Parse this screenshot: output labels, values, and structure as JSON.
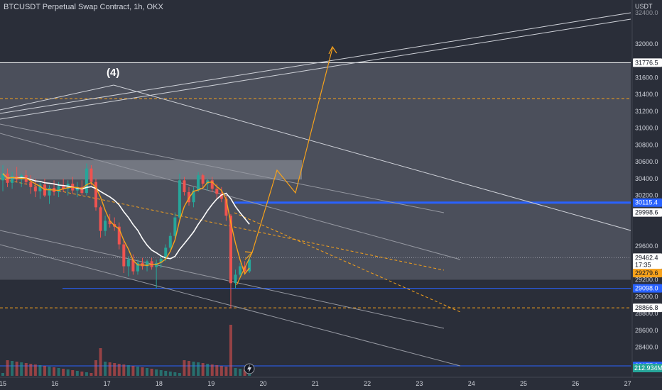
{
  "title": "BTCUSDT Perpetual Swap Contract, 1h, OKX",
  "currency": "USDT",
  "wave_label": "(4)",
  "colors": {
    "background": "#2a2e39",
    "zone": "#4b4f5b",
    "zone_light": "#7d818b",
    "bull": "#26a69a",
    "bear": "#ef5350",
    "ma_white": "#ffffff",
    "ma_orange": "#f7a21b",
    "blue_line": "#2962ff",
    "orange_dash": "#f7a21b"
  },
  "chart_data": {
    "type": "candlestick",
    "symbol": "BTCUSDT",
    "exchange": "OKX",
    "timeframe": "1h",
    "x_ticks": [
      "15",
      "16",
      "17",
      "18",
      "19",
      "20",
      "21",
      "22",
      "23",
      "24",
      "25",
      "26",
      "27"
    ],
    "y_ticks": [
      32000.0,
      31600.0,
      31400.0,
      31200.0,
      31000.0,
      30800.0,
      30600.0,
      30400.0,
      30200.0,
      29600.0,
      29200.0,
      29000.0,
      28800.0,
      28600.0,
      28400.0,
      28200.0
    ],
    "y_top_cut_label": "32400.0",
    "ylim": [
      28060,
      32520
    ],
    "price_tags": [
      {
        "value": 31776.5,
        "text": "31776.5",
        "style": "white"
      },
      {
        "value": 30115.4,
        "text": "30115.4",
        "style": "blue"
      },
      {
        "value": 29998.6,
        "text": "29998.6",
        "style": "white"
      },
      {
        "value": 29462.4,
        "text": "29462.4",
        "sub": "17:35",
        "style": "white"
      },
      {
        "value": 29279.6,
        "text": "29279.6",
        "style": "orange"
      },
      {
        "value": 29098.0,
        "text": "29098.0",
        "style": "blue"
      },
      {
        "value": 28866.8,
        "text": "28866.8",
        "style": "white"
      },
      {
        "value": 28177.3,
        "text": "28177.3",
        "style": "blue"
      }
    ],
    "volume_tag": "212.934M",
    "levels": [
      {
        "price": 31776.5,
        "style": "white-solid"
      },
      {
        "price": 31350.0,
        "style": "orange-dashed"
      },
      {
        "price": 29462.4,
        "style": "gray-dotted"
      },
      {
        "price": 28866.8,
        "style": "orange-dashed"
      }
    ],
    "zones": [
      {
        "from": 29200,
        "to": 31776.5
      },
      {
        "from": 30390,
        "to": 30620
      }
    ],
    "candles": [
      {
        "t": 0,
        "o": 30380,
        "h": 30560,
        "l": 30250,
        "c": 30460
      },
      {
        "t": 1,
        "o": 30460,
        "h": 30520,
        "l": 30300,
        "c": 30350
      },
      {
        "t": 2,
        "o": 30350,
        "h": 30480,
        "l": 30280,
        "c": 30430
      },
      {
        "t": 3,
        "o": 30430,
        "h": 30540,
        "l": 30360,
        "c": 30390
      },
      {
        "t": 4,
        "o": 30390,
        "h": 30460,
        "l": 30300,
        "c": 30440
      },
      {
        "t": 5,
        "o": 30440,
        "h": 30500,
        "l": 30330,
        "c": 30360
      },
      {
        "t": 6,
        "o": 30360,
        "h": 30440,
        "l": 30220,
        "c": 30300
      },
      {
        "t": 7,
        "o": 30300,
        "h": 30400,
        "l": 30180,
        "c": 30250
      },
      {
        "t": 8,
        "o": 30250,
        "h": 30360,
        "l": 30160,
        "c": 30330
      },
      {
        "t": 9,
        "o": 30330,
        "h": 30400,
        "l": 30180,
        "c": 30200
      },
      {
        "t": 10,
        "o": 30200,
        "h": 30320,
        "l": 30100,
        "c": 30290
      },
      {
        "t": 11,
        "o": 30290,
        "h": 30380,
        "l": 30200,
        "c": 30240
      },
      {
        "t": 12,
        "o": 30240,
        "h": 30360,
        "l": 30180,
        "c": 30310
      },
      {
        "t": 13,
        "o": 30310,
        "h": 30400,
        "l": 30240,
        "c": 30280
      },
      {
        "t": 14,
        "o": 30280,
        "h": 30380,
        "l": 30200,
        "c": 30340
      },
      {
        "t": 15,
        "o": 30340,
        "h": 30420,
        "l": 30220,
        "c": 30260
      },
      {
        "t": 16,
        "o": 30260,
        "h": 30360,
        "l": 30180,
        "c": 30300
      },
      {
        "t": 17,
        "o": 30300,
        "h": 30380,
        "l": 30200,
        "c": 30230
      },
      {
        "t": 18,
        "o": 30230,
        "h": 30580,
        "l": 30200,
        "c": 30520
      },
      {
        "t": 19,
        "o": 30520,
        "h": 30560,
        "l": 30320,
        "c": 30360
      },
      {
        "t": 20,
        "o": 30360,
        "h": 30400,
        "l": 30020,
        "c": 30060
      },
      {
        "t": 21,
        "o": 30060,
        "h": 30080,
        "l": 29700,
        "c": 29780
      },
      {
        "t": 22,
        "o": 29780,
        "h": 29960,
        "l": 29720,
        "c": 29900
      },
      {
        "t": 23,
        "o": 29900,
        "h": 29980,
        "l": 29820,
        "c": 29860
      },
      {
        "t": 24,
        "o": 29860,
        "h": 29940,
        "l": 29780,
        "c": 29830
      },
      {
        "t": 25,
        "o": 29830,
        "h": 29880,
        "l": 29560,
        "c": 29620
      },
      {
        "t": 26,
        "o": 29620,
        "h": 29680,
        "l": 29280,
        "c": 29360
      },
      {
        "t": 27,
        "o": 29360,
        "h": 29480,
        "l": 29240,
        "c": 29440
      },
      {
        "t": 28,
        "o": 29440,
        "h": 29500,
        "l": 29260,
        "c": 29300
      },
      {
        "t": 29,
        "o": 29300,
        "h": 29440,
        "l": 29260,
        "c": 29400
      },
      {
        "t": 30,
        "o": 29400,
        "h": 29460,
        "l": 29320,
        "c": 29360
      },
      {
        "t": 31,
        "o": 29360,
        "h": 29440,
        "l": 29300,
        "c": 29420
      },
      {
        "t": 32,
        "o": 29420,
        "h": 29460,
        "l": 29320,
        "c": 29350
      },
      {
        "t": 33,
        "o": 29350,
        "h": 29440,
        "l": 29100,
        "c": 29400
      },
      {
        "t": 34,
        "o": 29400,
        "h": 29480,
        "l": 29340,
        "c": 29450
      },
      {
        "t": 35,
        "o": 29450,
        "h": 29620,
        "l": 29420,
        "c": 29580
      },
      {
        "t": 36,
        "o": 29580,
        "h": 29760,
        "l": 29560,
        "c": 29720
      },
      {
        "t": 37,
        "o": 29720,
        "h": 30000,
        "l": 29680,
        "c": 29940
      },
      {
        "t": 38,
        "o": 29940,
        "h": 30460,
        "l": 29920,
        "c": 30380
      },
      {
        "t": 39,
        "o": 30380,
        "h": 30420,
        "l": 30200,
        "c": 30240
      },
      {
        "t": 40,
        "o": 30240,
        "h": 30300,
        "l": 30080,
        "c": 30120
      },
      {
        "t": 41,
        "o": 30120,
        "h": 30300,
        "l": 30060,
        "c": 30260
      },
      {
        "t": 42,
        "o": 30260,
        "h": 30480,
        "l": 30240,
        "c": 30440
      },
      {
        "t": 43,
        "o": 30440,
        "h": 30460,
        "l": 30300,
        "c": 30340
      },
      {
        "t": 44,
        "o": 30340,
        "h": 30400,
        "l": 30260,
        "c": 30380
      },
      {
        "t": 45,
        "o": 30380,
        "h": 30420,
        "l": 30240,
        "c": 30280
      },
      {
        "t": 46,
        "o": 30280,
        "h": 30340,
        "l": 30160,
        "c": 30220
      },
      {
        "t": 47,
        "o": 30220,
        "h": 30300,
        "l": 30120,
        "c": 30160
      },
      {
        "t": 48,
        "o": 30160,
        "h": 30200,
        "l": 29900,
        "c": 29960
      },
      {
        "t": 49,
        "o": 29960,
        "h": 29980,
        "l": 28860,
        "c": 29160
      },
      {
        "t": 50,
        "o": 29160,
        "h": 29320,
        "l": 29100,
        "c": 29260
      },
      {
        "t": 51,
        "o": 29260,
        "h": 29400,
        "l": 29220,
        "c": 29360
      },
      {
        "t": 52,
        "o": 29360,
        "h": 29420,
        "l": 29260,
        "c": 29300
      },
      {
        "t": 53,
        "o": 29300,
        "h": 29480,
        "l": 29280,
        "c": 29440
      }
    ]
  }
}
